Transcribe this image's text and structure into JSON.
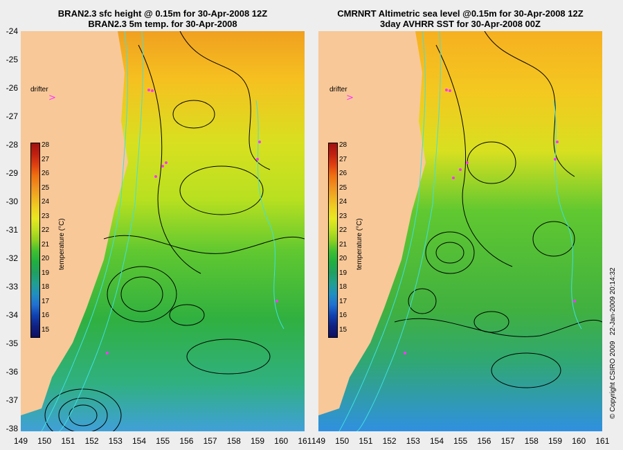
{
  "left": {
    "title_line1": "BRAN2.3 sfc height @ 0.15m for 30-Apr-2008 12Z",
    "title_line2": "BRAN2.3 5m temp. for 30-Apr-2008"
  },
  "right": {
    "title_line1": "CMRNRT Altimetric sea level  @0.15m  for 30-Apr-2008 12Z",
    "title_line2": "3day AVHRR SST for 30-Apr-2008 00Z"
  },
  "drifter_label": "drifter",
  "lat_labels": [
    "-24",
    "-25",
    "-26",
    "-27",
    "-28",
    "-29",
    "-30",
    "-31",
    "-32",
    "-33",
    "-34",
    "-35",
    "-36",
    "-37",
    "-38"
  ],
  "lon_labels": [
    "149",
    "150",
    "151",
    "152",
    "153",
    "154",
    "155",
    "156",
    "157",
    "158",
    "159",
    "160",
    "161"
  ],
  "colorbar": {
    "ticks": [
      "28",
      "27",
      "26",
      "25",
      "24",
      "23",
      "22",
      "21",
      "20",
      "19",
      "18",
      "17",
      "16",
      "15"
    ],
    "label": "temperature (°C)"
  },
  "copyright": "© Copyright CSIRO 2009",
  "timestamp": "22-Jan-2009 20:14:32",
  "colors": {
    "land": "#f8c898",
    "contour_ssh": "#000000",
    "contour_bathy": "#40e0e0",
    "drifter": "#ff33ff"
  }
}
